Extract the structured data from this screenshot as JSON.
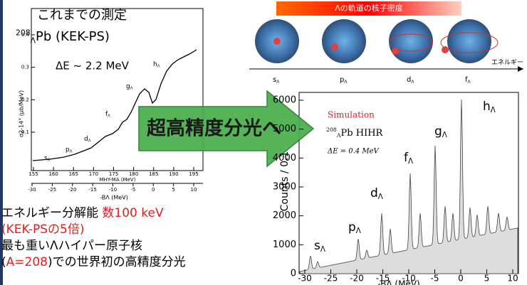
{
  "left_plot": {
    "heading": "これまでの測定",
    "target": {
      "mass": "208",
      "sub": "Λ",
      "text": "Pb (KEK-PS)"
    },
    "resolution": "ΔE ~ 2.2 MeV",
    "y_label": "σ2-14° (μb/MeV)",
    "yticks": [
      0.1,
      0.2,
      0.3,
      0.4
    ],
    "xticks": [
      155,
      160,
      165,
      170,
      175,
      180,
      185,
      190,
      195
    ],
    "x_label": "MHY-MA (MeV)",
    "bticks": [
      -30,
      -25,
      -20,
      -15,
      -10,
      -5,
      0,
      5,
      10
    ],
    "b_label": "-BΛ (MeV)",
    "states": [
      {
        "text": "s",
        "sub": "Λ"
      },
      {
        "text": "p",
        "sub": "Λ"
      },
      {
        "text": "d",
        "sub": "Λ"
      },
      {
        "text": "f",
        "sub": "Λ"
      },
      {
        "text": "g",
        "sub": "Λ"
      },
      {
        "text": "h",
        "sub": "Λ"
      }
    ]
  },
  "diagram": {
    "title": "Λの軌道の核子密度",
    "orbitals": [
      {
        "text": "s",
        "sub": "Λ"
      },
      {
        "text": "p",
        "sub": "Λ"
      },
      {
        "text": "d",
        "sub": "Λ"
      },
      {
        "text": "f",
        "sub": "Λ"
      }
    ],
    "axis_label": "エネルギー"
  },
  "arrow_text": "超高精度分光へ",
  "right_plot": {
    "legend": "Simulation",
    "target": {
      "mass": "208",
      "sub": "Λ",
      "text": "Pb  HIHR"
    },
    "resolution": "ΔE = 0.4 MeV",
    "y_label": "Counts / 0.1",
    "yticks": [
      0,
      1000,
      2000,
      3000,
      4000,
      5000,
      6000
    ],
    "xticks": [
      -30,
      -25,
      -20,
      -15,
      -10,
      -5,
      0,
      5,
      10
    ],
    "x_label": "-BΛ (MeV)",
    "states": [
      {
        "text": "s",
        "sub": "Λ"
      },
      {
        "text": "p",
        "sub": "Λ"
      },
      {
        "text": "d",
        "sub": "Λ"
      },
      {
        "text": "f",
        "sub": "Λ"
      },
      {
        "text": "g",
        "sub": "Λ"
      },
      {
        "text": "h",
        "sub": "Λ"
      }
    ]
  },
  "notes": [
    [
      {
        "text": "エネルギー分解能 ",
        "red": false
      },
      {
        "text": "数100 keV",
        "red": true
      }
    ],
    [
      {
        "text": "(KEK-PSの5倍)",
        "red": true
      }
    ],
    [
      {
        "text": "最も重いΛハイパー原子核",
        "red": false
      }
    ],
    [
      {
        "text": "(",
        "red": false
      },
      {
        "text": "A=208",
        "red": true
      },
      {
        "text": ")での世界初の高精度分光",
        "red": false
      }
    ]
  ]
}
